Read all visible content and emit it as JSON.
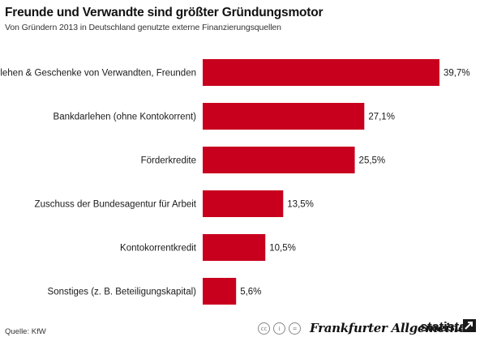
{
  "header": {
    "title": "Freunde und Verwandte sind größter Gründungsmotor",
    "subtitle": "Von Gründern 2013 in Deutschland genutzte externe Finanzierungsquellen"
  },
  "chart_data": {
    "type": "bar",
    "orientation": "horizontal",
    "title": "Freunde und Verwandte sind größter Gründungsmotor",
    "subtitle": "Von Gründern 2013 in Deutschland genutzte externe Finanzierungsquellen",
    "categories": [
      "Darlehen & Geschenke von Verwandten, Freunden",
      "Bankdarlehen (ohne Kontokorrent)",
      "Förderkredite",
      "Zuschuss der Bundesagentur für Arbeit",
      "Kontokorrentkredit",
      "Sonstiges (z. B. Beteiligungskapital)"
    ],
    "values": [
      39.7,
      27.1,
      25.5,
      13.5,
      10.5,
      5.6
    ],
    "value_labels": [
      "39,7%",
      "27,1%",
      "25,5%",
      "13,5%",
      "10,5%",
      "5,6%"
    ],
    "unit": "%",
    "xlim": [
      0,
      39.7
    ],
    "grid": false,
    "bar_color": "#c8001e"
  },
  "footer": {
    "source": "Quelle: KfW",
    "publisher": "Frankfurter Allgemeine",
    "brand": "statista",
    "license_icons": [
      "cc-icon",
      "info-icon",
      "equals-icon"
    ]
  }
}
